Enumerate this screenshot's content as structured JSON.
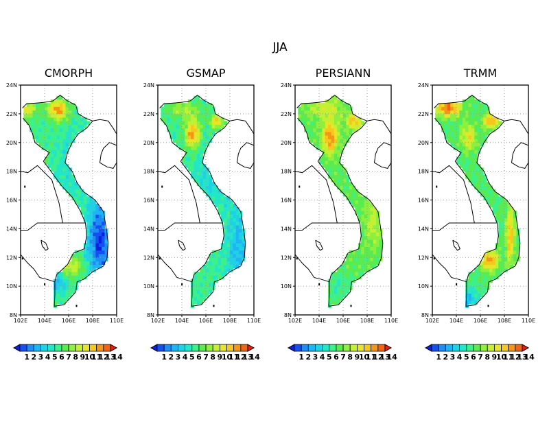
{
  "title": "JJA",
  "panels": [
    {
      "name": "CMORPH"
    },
    {
      "name": "GSMAP"
    },
    {
      "name": "PERSIANN"
    },
    {
      "name": "TRMM"
    }
  ],
  "lat_ticks": [
    "24N",
    "22N",
    "20N",
    "18N",
    "16N",
    "14N",
    "12N",
    "10N",
    "8N"
  ],
  "lon_ticks": [
    "102E",
    "104E",
    "106E",
    "108E",
    "110E"
  ],
  "colorbar": {
    "labels": [
      "1",
      "2",
      "3",
      "4",
      "5",
      "6",
      "7",
      "8",
      "9",
      "10",
      "11",
      "12",
      "13",
      "14"
    ],
    "colors": [
      "#0a20e0",
      "#1450f0",
      "#1e8cf5",
      "#1eb4f5",
      "#1ed2e6",
      "#23e6c8",
      "#3cf08c",
      "#5aeb50",
      "#8cf03c",
      "#c3f032",
      "#e6e628",
      "#f5c81e",
      "#f59614",
      "#f06414",
      "#e61e14"
    ]
  },
  "grid": "dotted",
  "map_extent": {
    "lon": [
      102,
      110
    ],
    "lat": [
      8,
      24
    ]
  }
}
